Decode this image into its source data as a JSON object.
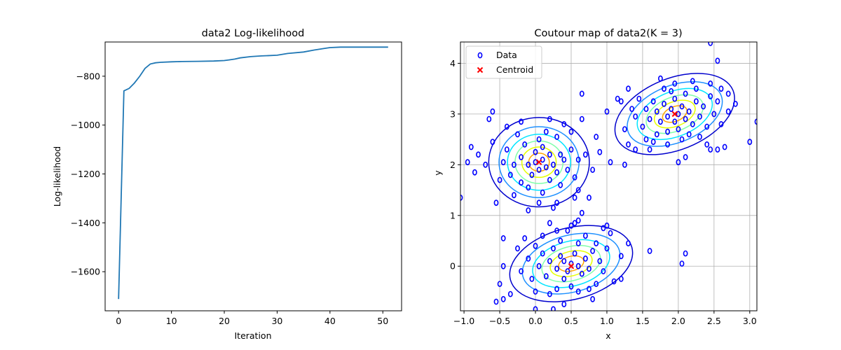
{
  "chart_data": [
    {
      "type": "line",
      "title": "data2 Log-likelihood",
      "xlabel": "Iteration",
      "ylabel": "Log-likelihood",
      "xlim": [
        -2.55,
        53.55
      ],
      "ylim": [
        -1760,
        -660
      ],
      "xticks": [
        0,
        10,
        20,
        30,
        40,
        50
      ],
      "yticks": [
        -1600,
        -1400,
        -1200,
        -1000,
        -800
      ],
      "ytick_labels": [
        "−1600",
        "−1400",
        "−1200",
        "−1000",
        "−800"
      ],
      "grid": false,
      "series": [
        {
          "color": "#1f77b4",
          "x": [
            0,
            1,
            2,
            3,
            4,
            5,
            6,
            7,
            8,
            10,
            12,
            15,
            18,
            20,
            21,
            22,
            23,
            25,
            27,
            30,
            32,
            35,
            37,
            39,
            40,
            42,
            45,
            48,
            51
          ],
          "y": [
            -1712,
            -860,
            -850,
            -828,
            -800,
            -768,
            -750,
            -745,
            -743,
            -741,
            -740,
            -739,
            -738,
            -736,
            -733,
            -730,
            -725,
            -720,
            -717,
            -714,
            -707,
            -701,
            -693,
            -686,
            -683,
            -681,
            -681,
            -681,
            -681
          ]
        }
      ]
    },
    {
      "type": "scatter",
      "title": "Coutour map of data2(K = 3)",
      "xlabel": "x",
      "ylabel": "y",
      "xlim": [
        -1.05,
        3.1
      ],
      "ylim": [
        -0.88,
        4.42
      ],
      "xticks": [
        -1.0,
        -0.5,
        0.0,
        0.5,
        1.0,
        1.5,
        2.0,
        2.5,
        3.0
      ],
      "xtick_labels": [
        "−1.0",
        "−0.5",
        "0.0",
        "0.5",
        "1.0",
        "1.5",
        "2.0",
        "2.5",
        "3.0"
      ],
      "yticks": [
        0,
        1,
        2,
        3,
        4
      ],
      "grid": true,
      "legend": {
        "position": "upper-left",
        "entries": [
          "Data",
          "Centroid"
        ]
      },
      "series": [
        {
          "name": "Data",
          "marker": "o",
          "color": "#0000ff",
          "points": [
            [
              0.0,
              2.05
            ],
            [
              0.1,
              2.1
            ],
            [
              -0.1,
              2.0
            ],
            [
              0.05,
              1.9
            ],
            [
              0.2,
              2.2
            ],
            [
              -0.2,
              2.15
            ],
            [
              0.15,
              1.95
            ],
            [
              0.0,
              2.25
            ],
            [
              -0.05,
              1.8
            ],
            [
              0.25,
              2.0
            ],
            [
              -0.3,
              2.0
            ],
            [
              0.3,
              1.85
            ],
            [
              0.1,
              2.35
            ],
            [
              -0.15,
              2.4
            ],
            [
              0.35,
              2.2
            ],
            [
              -0.35,
              1.8
            ],
            [
              0.4,
              2.1
            ],
            [
              0.2,
              1.7
            ],
            [
              -0.2,
              1.65
            ],
            [
              0.05,
              2.5
            ],
            [
              -0.4,
              2.3
            ],
            [
              0.45,
              1.9
            ],
            [
              -0.45,
              2.05
            ],
            [
              0.3,
              2.55
            ],
            [
              0.5,
              2.3
            ],
            [
              -0.25,
              2.6
            ],
            [
              0.15,
              2.65
            ],
            [
              0.55,
              1.75
            ],
            [
              -0.5,
              1.7
            ],
            [
              0.35,
              1.6
            ],
            [
              -0.1,
              1.55
            ],
            [
              0.6,
              2.1
            ],
            [
              -0.6,
              2.45
            ],
            [
              0.4,
              2.8
            ],
            [
              0.7,
              2.2
            ],
            [
              -0.7,
              2.0
            ],
            [
              0.6,
              1.5
            ],
            [
              -0.3,
              1.4
            ],
            [
              0.1,
              1.45
            ],
            [
              0.8,
              1.9
            ],
            [
              -0.8,
              2.2
            ],
            [
              0.2,
              2.9
            ],
            [
              -0.4,
              2.75
            ],
            [
              0.5,
              2.65
            ],
            [
              0.85,
              2.55
            ],
            [
              -0.9,
              2.35
            ],
            [
              0.55,
              1.35
            ],
            [
              -0.55,
              1.25
            ],
            [
              0.05,
              1.25
            ],
            [
              0.9,
              2.25
            ],
            [
              -0.95,
              2.05
            ],
            [
              0.3,
              1.25
            ],
            [
              0.65,
              2.9
            ],
            [
              -0.65,
              2.9
            ],
            [
              -0.2,
              2.85
            ],
            [
              0.75,
              1.35
            ],
            [
              -0.1,
              1.1
            ],
            [
              0.25,
              1.15
            ],
            [
              0.65,
              3.4
            ],
            [
              -0.6,
              3.05
            ],
            [
              -0.85,
              1.85
            ],
            [
              -1.05,
              1.35
            ],
            [
              0.5,
              0.05
            ],
            [
              0.4,
              0.1
            ],
            [
              0.6,
              0.0
            ],
            [
              0.45,
              -0.1
            ],
            [
              0.35,
              0.2
            ],
            [
              0.55,
              0.25
            ],
            [
              0.3,
              -0.05
            ],
            [
              0.7,
              0.15
            ],
            [
              0.25,
              0.35
            ],
            [
              0.65,
              -0.15
            ],
            [
              0.4,
              -0.25
            ],
            [
              0.2,
              0.1
            ],
            [
              0.8,
              0.3
            ],
            [
              0.6,
              0.45
            ],
            [
              0.1,
              0.25
            ],
            [
              0.75,
              -0.05
            ],
            [
              0.15,
              -0.2
            ],
            [
              0.9,
              0.1
            ],
            [
              0.35,
              0.5
            ],
            [
              0.5,
              -0.4
            ],
            [
              0.05,
              0.0
            ],
            [
              0.85,
              0.45
            ],
            [
              0.0,
              0.4
            ],
            [
              0.95,
              -0.1
            ],
            [
              0.3,
              -0.45
            ],
            [
              0.7,
              0.6
            ],
            [
              -0.05,
              -0.25
            ],
            [
              1.0,
              0.35
            ],
            [
              0.6,
              -0.5
            ],
            [
              0.1,
              0.6
            ],
            [
              -0.1,
              0.15
            ],
            [
              0.45,
              0.7
            ],
            [
              0.85,
              -0.35
            ],
            [
              -0.15,
              0.55
            ],
            [
              0.2,
              -0.55
            ],
            [
              1.05,
              0.65
            ],
            [
              0.75,
              -0.45
            ],
            [
              -0.2,
              -0.1
            ],
            [
              0.55,
              0.85
            ],
            [
              0.3,
              0.7
            ],
            [
              1.2,
              0.2
            ],
            [
              0.95,
              0.75
            ],
            [
              -0.25,
              0.35
            ],
            [
              0.0,
              -0.5
            ],
            [
              0.8,
              -0.65
            ],
            [
              0.4,
              -0.75
            ],
            [
              1.1,
              -0.3
            ],
            [
              -0.35,
              -0.55
            ],
            [
              0.6,
              0.9
            ],
            [
              1.3,
              0.45
            ],
            [
              -0.45,
              0.0
            ],
            [
              -0.5,
              -0.35
            ],
            [
              0.25,
              -0.85
            ],
            [
              0.65,
              1.05
            ],
            [
              1.0,
              0.8
            ],
            [
              -0.55,
              -0.7
            ],
            [
              -0.45,
              -0.65
            ],
            [
              0.0,
              -0.85
            ],
            [
              0.5,
              0.8
            ],
            [
              -0.45,
              0.55
            ],
            [
              0.2,
              0.85
            ],
            [
              1.2,
              -0.25
            ],
            [
              1.6,
              0.3
            ],
            [
              2.1,
              0.25
            ],
            [
              2.05,
              0.05
            ],
            [
              0.8,
              -0.95
            ],
            [
              2.0,
              3.0
            ],
            [
              1.9,
              3.1
            ],
            [
              2.1,
              2.9
            ],
            [
              1.95,
              2.85
            ],
            [
              2.05,
              3.15
            ],
            [
              1.85,
              2.95
            ],
            [
              2.15,
              3.05
            ],
            [
              1.8,
              3.2
            ],
            [
              2.2,
              2.8
            ],
            [
              1.95,
              3.3
            ],
            [
              2.0,
              2.7
            ],
            [
              1.75,
              2.85
            ],
            [
              2.25,
              3.25
            ],
            [
              1.7,
              3.05
            ],
            [
              2.3,
              2.95
            ],
            [
              1.85,
              2.65
            ],
            [
              2.1,
              3.4
            ],
            [
              1.65,
              3.25
            ],
            [
              2.35,
              3.15
            ],
            [
              1.9,
              3.45
            ],
            [
              2.15,
              2.6
            ],
            [
              1.6,
              2.9
            ],
            [
              2.4,
              2.75
            ],
            [
              1.8,
              3.5
            ],
            [
              2.05,
              2.5
            ],
            [
              1.55,
              3.1
            ],
            [
              2.45,
              3.35
            ],
            [
              1.7,
              2.6
            ],
            [
              2.25,
              3.5
            ],
            [
              1.5,
              2.75
            ],
            [
              2.5,
              3.0
            ],
            [
              1.95,
              3.6
            ],
            [
              2.3,
              2.55
            ],
            [
              1.45,
              3.3
            ],
            [
              2.55,
              3.25
            ],
            [
              1.65,
              2.45
            ],
            [
              2.2,
              3.65
            ],
            [
              1.4,
              2.95
            ],
            [
              2.6,
              2.8
            ],
            [
              1.85,
              2.4
            ],
            [
              2.45,
              3.6
            ],
            [
              1.35,
              3.1
            ],
            [
              2.4,
              2.4
            ],
            [
              1.75,
              3.7
            ],
            [
              2.6,
              3.5
            ],
            [
              1.55,
              2.5
            ],
            [
              2.7,
              3.05
            ],
            [
              1.3,
              3.5
            ],
            [
              2.55,
              2.3
            ],
            [
              1.6,
              2.3
            ],
            [
              2.7,
              3.4
            ],
            [
              1.25,
              2.7
            ],
            [
              2.8,
              3.2
            ],
            [
              1.2,
              3.25
            ],
            [
              2.45,
              2.3
            ],
            [
              1.4,
              2.3
            ],
            [
              2.65,
              2.35
            ],
            [
              1.3,
              2.4
            ],
            [
              2.0,
              2.05
            ],
            [
              1.15,
              3.3
            ],
            [
              2.1,
              2.15
            ],
            [
              2.55,
              4.05
            ],
            [
              2.45,
              4.4
            ],
            [
              1.25,
              2.0
            ],
            [
              3.0,
              2.45
            ],
            [
              3.1,
              2.85
            ],
            [
              1.0,
              3.05
            ],
            [
              1.05,
              2.05
            ]
          ]
        },
        {
          "name": "Centroid",
          "marker": "x",
          "color": "#ff0000",
          "points": [
            [
              0.05,
              2.05
            ],
            [
              0.5,
              0.0
            ],
            [
              1.95,
              3.0
            ]
          ]
        }
      ],
      "contours": {
        "levels_colors": [
          "#0000cd",
          "#1e90ff",
          "#00e5ff",
          "#7fffaa",
          "#e5ff00",
          "#ffa500"
        ],
        "gaussians": [
          {
            "center": [
              0.05,
              2.05
            ],
            "sx": 0.32,
            "sy": 0.4,
            "rotation_deg": 0
          },
          {
            "center": [
              0.5,
              0.05
            ],
            "sx": 0.4,
            "sy": 0.32,
            "rotation_deg": 15
          },
          {
            "center": [
              1.95,
              3.0
            ],
            "sx": 0.4,
            "sy": 0.32,
            "rotation_deg": 22
          }
        ]
      }
    }
  ]
}
